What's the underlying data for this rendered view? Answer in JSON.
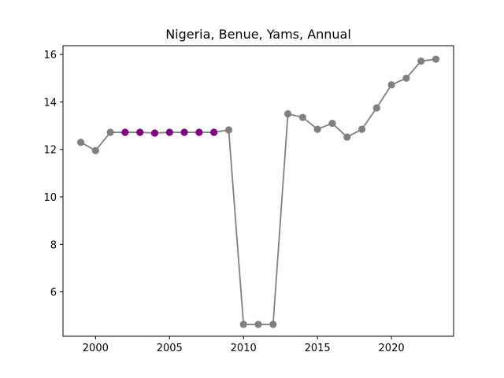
{
  "chart_data": {
    "type": "line",
    "title": "Nigeria, Benue, Yams, Annual",
    "xlabel": "",
    "ylabel": "",
    "xlim": [
      1997.8,
      2024.2
    ],
    "ylim": [
      4.13,
      16.37
    ],
    "x_ticks": [
      2000,
      2005,
      2010,
      2015,
      2020
    ],
    "y_ticks": [
      6,
      8,
      10,
      12,
      14,
      16
    ],
    "grid": false,
    "series": [
      {
        "line_color": "#808080",
        "points": [
          {
            "x": 1999,
            "y": 12.3,
            "color": "#808080"
          },
          {
            "x": 2000,
            "y": 11.95,
            "color": "#808080"
          },
          {
            "x": 2001,
            "y": 12.72,
            "color": "#808080"
          },
          {
            "x": 2002,
            "y": 12.72,
            "color": "#800080"
          },
          {
            "x": 2003,
            "y": 12.72,
            "color": "#800080"
          },
          {
            "x": 2004,
            "y": 12.69,
            "color": "#800080"
          },
          {
            "x": 2005,
            "y": 12.72,
            "color": "#800080"
          },
          {
            "x": 2006,
            "y": 12.72,
            "color": "#800080"
          },
          {
            "x": 2007,
            "y": 12.72,
            "color": "#800080"
          },
          {
            "x": 2008,
            "y": 12.72,
            "color": "#800080"
          },
          {
            "x": 2009,
            "y": 12.82,
            "color": "#808080"
          },
          {
            "x": 2010,
            "y": 4.63,
            "color": "#808080"
          },
          {
            "x": 2011,
            "y": 4.63,
            "color": "#808080"
          },
          {
            "x": 2012,
            "y": 4.63,
            "color": "#808080"
          },
          {
            "x": 2013,
            "y": 13.5,
            "color": "#808080"
          },
          {
            "x": 2014,
            "y": 13.35,
            "color": "#808080"
          },
          {
            "x": 2015,
            "y": 12.85,
            "color": "#808080"
          },
          {
            "x": 2016,
            "y": 13.1,
            "color": "#808080"
          },
          {
            "x": 2017,
            "y": 12.52,
            "color": "#808080"
          },
          {
            "x": 2018,
            "y": 12.85,
            "color": "#808080"
          },
          {
            "x": 2019,
            "y": 13.75,
            "color": "#808080"
          },
          {
            "x": 2020,
            "y": 14.72,
            "color": "#808080"
          },
          {
            "x": 2021,
            "y": 15.0,
            "color": "#808080"
          },
          {
            "x": 2022,
            "y": 15.72,
            "color": "#808080"
          },
          {
            "x": 2023,
            "y": 15.8,
            "color": "#808080"
          }
        ]
      }
    ]
  }
}
